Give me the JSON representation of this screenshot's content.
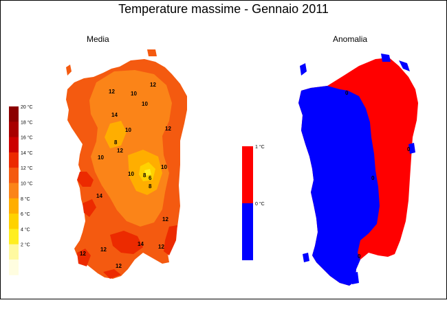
{
  "title": "Temperature massime - Gennaio 2011",
  "panels": {
    "mean": {
      "label": "Media"
    },
    "anomaly": {
      "label": "Anomalia"
    }
  },
  "legend_mean": {
    "unit": "°C",
    "steps": [
      {
        "value": 20,
        "color": "#8b0000"
      },
      {
        "value": 18,
        "color": "#a80000"
      },
      {
        "value": 16,
        "color": "#cc0000"
      },
      {
        "value": 14,
        "color": "#ec2a00"
      },
      {
        "value": 12,
        "color": "#f45a10"
      },
      {
        "value": 10,
        "color": "#fb8418"
      },
      {
        "value": 8,
        "color": "#ffae00"
      },
      {
        "value": 6,
        "color": "#ffd200"
      },
      {
        "value": 4,
        "color": "#ffee20"
      },
      {
        "value": 2,
        "color": "#fff9a0"
      },
      {
        "value": 0,
        "color": "#fffde0"
      }
    ],
    "labels": [
      "20 °C",
      "18 °C",
      "16 °C",
      "14 °C",
      "12 °C",
      "10 °C",
      "8 °C",
      "6 °C",
      "4 °C",
      "2 °C"
    ]
  },
  "legend_anomaly": {
    "steps": [
      {
        "value": 1,
        "color": "#ff0000"
      },
      {
        "value": 0,
        "color": "#0000ff"
      }
    ],
    "labels": [
      "1 °C",
      "0 °C"
    ]
  },
  "contour_labels_mean": [
    "12",
    "10",
    "12",
    "14",
    "10",
    "12",
    "8",
    "10",
    "12",
    "10",
    "10",
    "10",
    "8",
    "6",
    "8",
    "14",
    "12",
    "12",
    "14",
    "12",
    "12",
    "12"
  ],
  "contour_labels_anomaly": [
    "0",
    "0",
    "0",
    "0"
  ]
}
